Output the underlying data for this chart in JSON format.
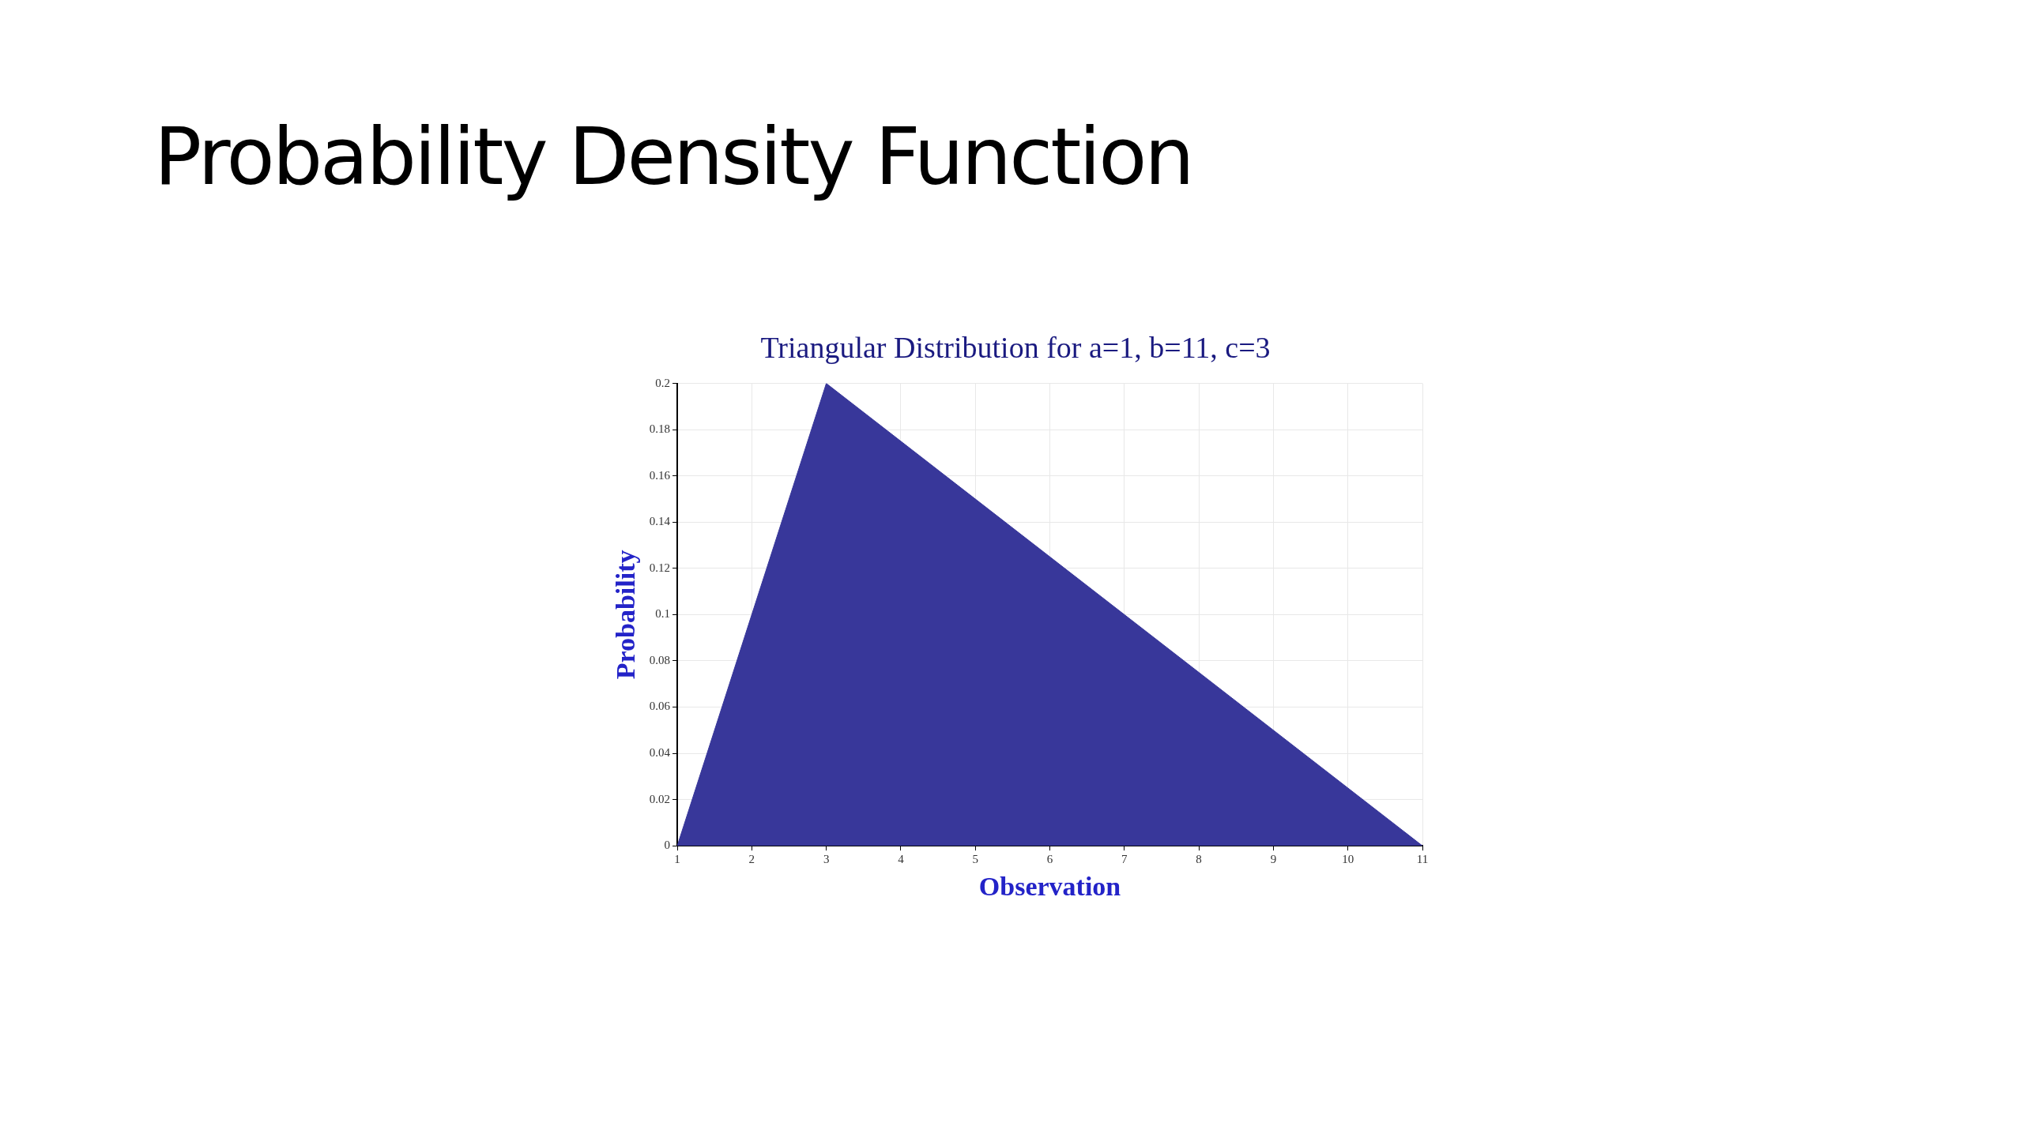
{
  "chart_data": {
    "type": "area",
    "title": "Probability Density Function",
    "subtitle": "Triangular Distribution for a=1, b=11, c=3",
    "xlabel": "Observation",
    "ylabel": "Probability",
    "x": [
      1,
      3,
      11
    ],
    "series": [
      {
        "color": "#38379a",
        "values": [
          0,
          0.2,
          0
        ]
      }
    ],
    "xlim": [
      1,
      11
    ],
    "xticks": [
      1,
      2,
      3,
      4,
      5,
      6,
      7,
      8,
      9,
      10,
      11
    ],
    "ylim": [
      0,
      0.2
    ],
    "yticks": [
      0,
      0.02,
      0.04,
      0.06,
      0.08,
      0.1,
      0.12,
      0.14,
      0.16,
      0.18,
      0.2
    ],
    "grid": true,
    "legend": false
  }
}
